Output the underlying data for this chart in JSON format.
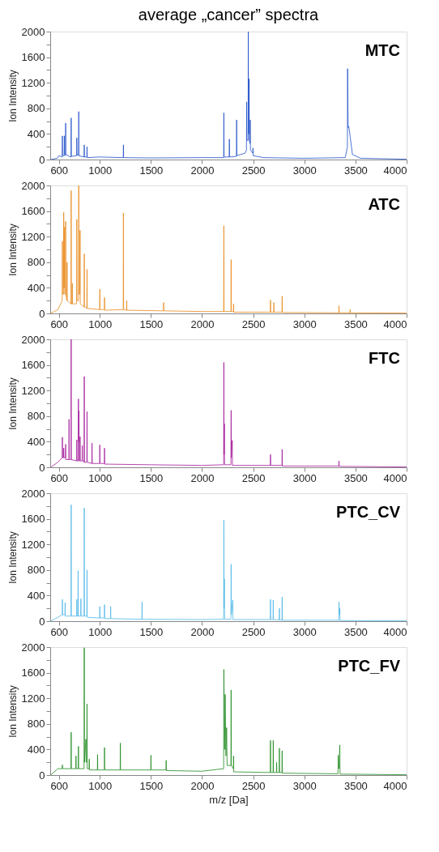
{
  "chart_data": [
    {
      "type": "line",
      "title": "average „cancer” spectra",
      "ylabel": "Ion Intensity",
      "xlim": [
        515,
        4000
      ],
      "xticks": [
        600,
        1000,
        1500,
        2000,
        2500,
        3000,
        3500,
        4000
      ],
      "ylim": [
        0,
        2000
      ],
      "yticks": [
        0,
        {
          "value": 200,
          "label": null
        },
        400,
        {
          "value": 600,
          "label": null
        },
        800,
        {
          "value": 1000,
          "label": null
        },
        1200,
        {
          "value": 1400,
          "label": null
        },
        1600,
        {
          "value": 1800,
          "label": null
        },
        2000
      ],
      "grid": false,
      "series": [
        {
          "name": "MTC",
          "color": "#1f4fc8",
          "x": [
            520,
            585,
            600,
            632,
            634,
            636,
            651,
            653,
            655,
            664,
            666,
            668,
            700,
            718,
            720,
            722,
            773,
            775,
            777,
            792,
            794,
            796,
            846,
            848,
            850,
            873,
            875,
            877,
            1000,
            1229,
            1231,
            1233,
            1500,
            2000,
            2211,
            2213,
            2215,
            2265,
            2267,
            2269,
            2336,
            2338,
            2340,
            2420,
            2434,
            2436,
            2438,
            2450,
            2452,
            2454,
            2458,
            2460,
            2462,
            2469,
            2471,
            2473,
            2496,
            2498,
            2500,
            2600,
            3000,
            3400,
            3421,
            3423,
            3428,
            3434,
            3448,
            3470,
            3550,
            4000
          ],
          "values": [
            0,
            20,
            60,
            40,
            370,
            60,
            60,
            370,
            80,
            60,
            570,
            80,
            50,
            40,
            650,
            50,
            60,
            340,
            70,
            70,
            750,
            60,
            40,
            230,
            40,
            40,
            200,
            30,
            40,
            30,
            230,
            30,
            25,
            30,
            30,
            730,
            40,
            40,
            320,
            40,
            50,
            620,
            60,
            100,
            150,
            900,
            300,
            300,
            2000,
            400,
            400,
            1260,
            300,
            250,
            620,
            150,
            100,
            180,
            60,
            30,
            20,
            30,
            200,
            1420,
            500,
            520,
            360,
            80,
            20,
            5
          ]
        }
      ]
    },
    {
      "type": "line",
      "ylabel": "Ion Intensity",
      "xlim": [
        515,
        4000
      ],
      "xticks": [
        600,
        1000,
        1500,
        2000,
        2500,
        3000,
        3500,
        4000
      ],
      "ylim": [
        0,
        2000
      ],
      "yticks": [
        0,
        {
          "value": 200,
          "label": null
        },
        400,
        {
          "value": 600,
          "label": null
        },
        800,
        {
          "value": 1000,
          "label": null
        },
        1200,
        {
          "value": 1400,
          "label": null
        },
        1600,
        {
          "value": 1800,
          "label": null
        },
        2000
      ],
      "grid": false,
      "series": [
        {
          "name": "ATC",
          "color": "#e8891a",
          "x": [
            520,
            590,
            632,
            634,
            636,
            645,
            647,
            649,
            653,
            655,
            657,
            664,
            666,
            668,
            678,
            680,
            682,
            718,
            720,
            722,
            729,
            731,
            733,
            773,
            775,
            777,
            792,
            794,
            796,
            805,
            807,
            809,
            846,
            848,
            850,
            873,
            875,
            877,
            998,
            1000,
            1002,
            1044,
            1046,
            1048,
            1229,
            1231,
            1233,
            1261,
            1263,
            1265,
            1622,
            1624,
            1626,
            2000,
            2211,
            2213,
            2215,
            2282,
            2284,
            2286,
            2306,
            2308,
            2310,
            2667,
            2669,
            2671,
            2700,
            2702,
            2704,
            2781,
            2783,
            2785,
            3337,
            3339,
            3341,
            3446,
            3448,
            3450,
            4000
          ],
          "values": [
            0,
            60,
            200,
            1130,
            300,
            300,
            1580,
            400,
            400,
            1350,
            300,
            300,
            1440,
            300,
            200,
            800,
            200,
            150,
            1920,
            150,
            150,
            470,
            150,
            150,
            1470,
            200,
            200,
            2000,
            300,
            300,
            1300,
            150,
            100,
            930,
            100,
            80,
            690,
            80,
            60,
            380,
            60,
            60,
            250,
            50,
            60,
            1570,
            60,
            50,
            200,
            50,
            40,
            170,
            40,
            30,
            30,
            1370,
            30,
            30,
            840,
            30,
            30,
            150,
            20,
            20,
            210,
            20,
            20,
            170,
            20,
            20,
            270,
            15,
            10,
            120,
            10,
            10,
            60,
            10,
            5
          ]
        }
      ]
    },
    {
      "type": "line",
      "ylabel": "Ion Intensity",
      "xlim": [
        515,
        4000
      ],
      "xticks": [
        600,
        1000,
        1500,
        2000,
        2500,
        3000,
        3500,
        4000
      ],
      "ylim": [
        0,
        2000
      ],
      "yticks": [
        0,
        {
          "value": 200,
          "label": null
        },
        400,
        {
          "value": 600,
          "label": null
        },
        800,
        {
          "value": 1000,
          "label": null
        },
        1200,
        {
          "value": 1400,
          "label": null
        },
        1600,
        {
          "value": 1800,
          "label": null
        },
        2000
      ],
      "grid": false,
      "series": [
        {
          "name": "FTC",
          "color": "#a3199a",
          "x": [
            520,
            590,
            632,
            634,
            636,
            645,
            647,
            649,
            664,
            666,
            668,
            697,
            699,
            701,
            718,
            720,
            722,
            773,
            775,
            777,
            789,
            791,
            793,
            796,
            798,
            805,
            807,
            809,
            827,
            829,
            831,
            846,
            848,
            850,
            873,
            875,
            877,
            922,
            924,
            926,
            998,
            1000,
            1002,
            1044,
            1046,
            1048,
            1500,
            2000,
            2211,
            2213,
            2215,
            2218,
            2220,
            2282,
            2284,
            2286,
            2295,
            2297,
            2667,
            2669,
            2671,
            2781,
            2783,
            2785,
            3337,
            3339,
            3341,
            4000
          ],
          "values": [
            0,
            80,
            150,
            470,
            150,
            150,
            300,
            150,
            150,
            360,
            120,
            120,
            750,
            120,
            120,
            2000,
            120,
            100,
            430,
            100,
            100,
            1070,
            400,
            880,
            100,
            100,
            480,
            100,
            100,
            340,
            100,
            80,
            1420,
            80,
            80,
            870,
            80,
            60,
            380,
            60,
            60,
            350,
            60,
            60,
            300,
            50,
            40,
            30,
            40,
            1640,
            200,
            680,
            40,
            40,
            890,
            150,
            420,
            30,
            30,
            200,
            30,
            30,
            280,
            20,
            20,
            100,
            15,
            5
          ]
        }
      ]
    },
    {
      "type": "line",
      "ylabel": "Ion Intensity",
      "xlim": [
        515,
        4000
      ],
      "xticks": [
        600,
        1000,
        1500,
        2000,
        2500,
        3000,
        3500,
        4000
      ],
      "ylim": [
        0,
        2000
      ],
      "yticks": [
        0,
        {
          "value": 200,
          "label": null
        },
        400,
        {
          "value": 600,
          "label": null
        },
        800,
        {
          "value": 1000,
          "label": null
        },
        1200,
        {
          "value": 1400,
          "label": null
        },
        1600,
        {
          "value": 1800,
          "label": null
        },
        2000
      ],
      "grid": false,
      "series": [
        {
          "name": "PTC_CV",
          "color": "#4fb8e8",
          "x": [
            520,
            590,
            632,
            634,
            636,
            659,
            661,
            663,
            718,
            720,
            722,
            773,
            775,
            777,
            786,
            788,
            790,
            813,
            815,
            817,
            846,
            848,
            850,
            873,
            875,
            877,
            998,
            1000,
            1002,
            1044,
            1046,
            1048,
            1104,
            1106,
            1108,
            1411,
            1413,
            1415,
            2000,
            2211,
            2213,
            2215,
            2218,
            2220,
            2282,
            2284,
            2286,
            2300,
            2302,
            2667,
            2669,
            2671,
            2694,
            2696,
            2698,
            2754,
            2756,
            2758,
            2781,
            2783,
            2785,
            3337,
            3339,
            3343,
            3347,
            3349,
            4000
          ],
          "values": [
            0,
            60,
            100,
            340,
            100,
            100,
            290,
            80,
            80,
            1820,
            80,
            80,
            340,
            80,
            80,
            790,
            80,
            80,
            350,
            80,
            80,
            1770,
            80,
            80,
            800,
            60,
            50,
            230,
            50,
            50,
            260,
            40,
            40,
            230,
            40,
            30,
            300,
            30,
            25,
            30,
            1580,
            200,
            660,
            30,
            30,
            890,
            100,
            330,
            25,
            25,
            340,
            25,
            25,
            330,
            25,
            20,
            200,
            20,
            20,
            380,
            15,
            15,
            300,
            100,
            200,
            10,
            5
          ]
        }
      ]
    },
    {
      "type": "line",
      "xlabel": "m/z [Da]",
      "ylabel": "Ion Intensity",
      "xlim": [
        515,
        4000
      ],
      "xticks": [
        600,
        1000,
        1500,
        2000,
        2500,
        3000,
        3500,
        4000
      ],
      "ylim": [
        0,
        2000
      ],
      "yticks": [
        0,
        {
          "value": 200,
          "label": null
        },
        400,
        {
          "value": 600,
          "label": null
        },
        800,
        {
          "value": 1000,
          "label": null
        },
        1200,
        {
          "value": 1400,
          "label": null
        },
        1600,
        {
          "value": 1800,
          "label": null
        },
        2000
      ],
      "grid": false,
      "series": [
        {
          "name": "PTC_FV",
          "color": "#1e8a1e",
          "x": [
            520,
            590,
            632,
            634,
            636,
            718,
            720,
            722,
            765,
            767,
            769,
            789,
            791,
            793,
            846,
            848,
            850,
            864,
            866,
            873,
            875,
            877,
            895,
            897,
            899,
            976,
            978,
            980,
            1044,
            1046,
            1048,
            1199,
            1201,
            1203,
            1498,
            1500,
            1502,
            1647,
            1649,
            1651,
            2000,
            2211,
            2213,
            2220,
            2226,
            2233,
            2240,
            2245,
            2282,
            2284,
            2286,
            2306,
            2308,
            2310,
            2667,
            2669,
            2671,
            2694,
            2696,
            2698,
            2727,
            2729,
            2731,
            2754,
            2756,
            2758,
            2781,
            2783,
            2785,
            3329,
            3331,
            3339,
            3347,
            3349,
            4000
          ],
          "values": [
            0,
            100,
            100,
            160,
            100,
            100,
            670,
            100,
            100,
            300,
            100,
            100,
            450,
            100,
            100,
            1990,
            200,
            560,
            200,
            200,
            1110,
            100,
            100,
            250,
            80,
            80,
            320,
            80,
            80,
            430,
            80,
            80,
            500,
            80,
            80,
            310,
            80,
            80,
            230,
            70,
            60,
            100,
            1650,
            400,
            1260,
            300,
            740,
            150,
            150,
            1330,
            150,
            100,
            300,
            50,
            40,
            540,
            40,
            40,
            540,
            40,
            40,
            200,
            40,
            40,
            420,
            40,
            40,
            380,
            30,
            20,
            310,
            100,
            470,
            15,
            5
          ]
        }
      ]
    }
  ]
}
